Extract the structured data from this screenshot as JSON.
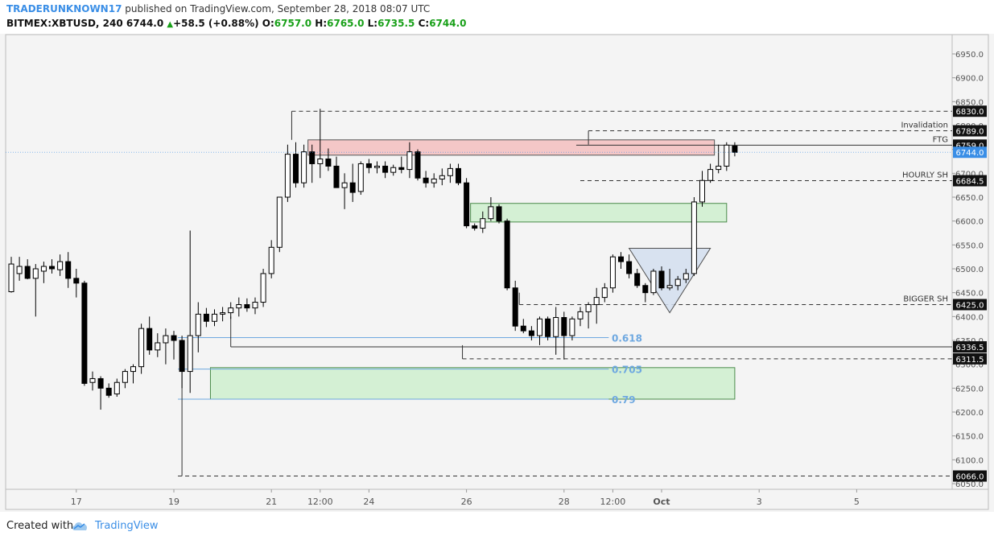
{
  "header": {
    "author": "TRADERUNKNOWN17",
    "published_text": "published on TradingView.com, September 28, 2018 08:07 UTC",
    "symbol": "BITMEX:XBTUSD, 240",
    "last_price": "6744.0",
    "change_arrow": "▲",
    "change": "+58.5 (+0.88%)",
    "o_label": "O:",
    "o_value": "6757.0",
    "h_label": "H:",
    "h_value": "6765.0",
    "l_label": "L:",
    "l_value": "6735.5",
    "c_label": "C:",
    "c_value": "6744.0"
  },
  "footer": {
    "created_with": "Created with",
    "brand": "TradingView",
    "logo_icon": "tradingview-cloud-icon"
  },
  "colors": {
    "background": "#f4f4f4",
    "panel": "#ffffff",
    "up_candle": "#ffffff",
    "down_candle": "#000000",
    "resistance_zone": "#f4c7c7",
    "support_zone": "#d4f0d4",
    "fib_text": "#6ea8e0",
    "current_price_tag": "#3a8ee6",
    "triangle_fill": "#d4dff0"
  },
  "chart_data": {
    "type": "candlestick",
    "symbol": "BITMEX:XBTUSD",
    "interval": "240",
    "ylim": [
      6030,
      6980
    ],
    "y_ticks": [
      6050.0,
      6100.0,
      6150.0,
      6200.0,
      6250.0,
      6300.0,
      6350.0,
      6400.0,
      6450.0,
      6500.0,
      6550.0,
      6600.0,
      6650.0,
      6700.0,
      6750.0,
      6800.0,
      6850.0,
      6900.0,
      6950.0
    ],
    "x_ticks": [
      "17",
      "19",
      "21",
      "12:00",
      "24",
      "26",
      "28",
      "12:00",
      "Oct",
      "3",
      "5"
    ],
    "x_tick_index": [
      8,
      20,
      32,
      38,
      44,
      56,
      68,
      74,
      80,
      92,
      104
    ],
    "ohlc": [
      [
        6452,
        6525,
        6450,
        6510
      ],
      [
        6490,
        6525,
        6475,
        6505
      ],
      [
        6505,
        6520,
        6478,
        6480
      ],
      [
        6480,
        6510,
        6400,
        6500
      ],
      [
        6495,
        6515,
        6470,
        6505
      ],
      [
        6505,
        6520,
        6490,
        6500
      ],
      [
        6498,
        6530,
        6485,
        6515
      ],
      [
        6515,
        6535,
        6460,
        6480
      ],
      [
        6480,
        6500,
        6440,
        6470
      ],
      [
        6470,
        6475,
        6255,
        6260
      ],
      [
        6262,
        6285,
        6245,
        6270
      ],
      [
        6270,
        6275,
        6205,
        6250
      ],
      [
        6250,
        6260,
        6230,
        6235
      ],
      [
        6238,
        6270,
        6232,
        6262
      ],
      [
        6262,
        6290,
        6250,
        6285
      ],
      [
        6285,
        6300,
        6260,
        6295
      ],
      [
        6295,
        6385,
        6280,
        6375
      ],
      [
        6375,
        6400,
        6320,
        6330
      ],
      [
        6330,
        6365,
        6315,
        6345
      ],
      [
        6345,
        6375,
        6300,
        6360
      ],
      [
        6360,
        6370,
        6310,
        6350
      ],
      [
        6350,
        6360,
        6250,
        6285
      ],
      [
        6285,
        6580,
        6240,
        6360
      ],
      [
        6360,
        6430,
        6325,
        6405
      ],
      [
        6405,
        6418,
        6378,
        6390
      ],
      [
        6390,
        6415,
        6380,
        6405
      ],
      [
        6405,
        6420,
        6390,
        6408
      ],
      [
        6408,
        6430,
        6395,
        6418
      ],
      [
        6418,
        6440,
        6400,
        6425
      ],
      [
        6425,
        6438,
        6410,
        6418
      ],
      [
        6418,
        6440,
        6405,
        6430
      ],
      [
        6430,
        6500,
        6420,
        6490
      ],
      [
        6490,
        6560,
        6480,
        6545
      ],
      [
        6545,
        6650,
        6535,
        6650
      ],
      [
        6650,
        6760,
        6640,
        6740
      ],
      [
        6740,
        6765,
        6670,
        6680
      ],
      [
        6680,
        6760,
        6670,
        6745
      ],
      [
        6745,
        6760,
        6680,
        6720
      ],
      [
        6720,
        6835,
        6690,
        6730
      ],
      [
        6730,
        6752,
        6705,
        6715
      ],
      [
        6715,
        6735,
        6670,
        6670
      ],
      [
        6670,
        6700,
        6625,
        6680
      ],
      [
        6680,
        6720,
        6640,
        6660
      ],
      [
        6662,
        6725,
        6655,
        6720
      ],
      [
        6720,
        6730,
        6700,
        6712
      ],
      [
        6712,
        6725,
        6700,
        6715
      ],
      [
        6715,
        6725,
        6690,
        6702
      ],
      [
        6702,
        6718,
        6695,
        6712
      ],
      [
        6712,
        6735,
        6700,
        6708
      ],
      [
        6708,
        6765,
        6690,
        6745
      ],
      [
        6745,
        6750,
        6685,
        6690
      ],
      [
        6690,
        6705,
        6670,
        6680
      ],
      [
        6680,
        6700,
        6670,
        6688
      ],
      [
        6688,
        6710,
        6675,
        6695
      ],
      [
        6695,
        6720,
        6680,
        6710
      ],
      [
        6710,
        6720,
        6675,
        6680
      ],
      [
        6680,
        6690,
        6585,
        6590
      ],
      [
        6590,
        6595,
        6580,
        6585
      ],
      [
        6585,
        6620,
        6575,
        6605
      ],
      [
        6605,
        6650,
        6600,
        6630
      ],
      [
        6630,
        6635,
        6595,
        6600
      ],
      [
        6600,
        6605,
        6455,
        6460
      ],
      [
        6460,
        6475,
        6370,
        6380
      ],
      [
        6380,
        6395,
        6365,
        6370
      ],
      [
        6370,
        6380,
        6350,
        6360
      ],
      [
        6360,
        6400,
        6340,
        6395
      ],
      [
        6395,
        6400,
        6350,
        6358
      ],
      [
        6358,
        6420,
        6320,
        6398
      ],
      [
        6398,
        6410,
        6310,
        6360
      ],
      [
        6360,
        6400,
        6350,
        6395
      ],
      [
        6395,
        6420,
        6380,
        6410
      ],
      [
        6410,
        6430,
        6375,
        6425
      ],
      [
        6425,
        6460,
        6385,
        6440
      ],
      [
        6440,
        6470,
        6430,
        6460
      ],
      [
        6460,
        6530,
        6450,
        6525
      ],
      [
        6525,
        6535,
        6500,
        6515
      ],
      [
        6515,
        6530,
        6480,
        6490
      ],
      [
        6490,
        6500,
        6460,
        6465
      ],
      [
        6465,
        6470,
        6430,
        6450
      ],
      [
        6450,
        6500,
        6445,
        6495
      ],
      [
        6495,
        6505,
        6455,
        6460
      ],
      [
        6460,
        6500,
        6455,
        6465
      ],
      [
        6465,
        6485,
        6455,
        6478
      ],
      [
        6478,
        6500,
        6470,
        6490
      ],
      [
        6490,
        6650,
        6485,
        6640
      ],
      [
        6640,
        6705,
        6630,
        6685
      ],
      [
        6685,
        6720,
        6680,
        6708
      ],
      [
        6708,
        6760,
        6700,
        6715
      ],
      [
        6715,
        6765,
        6705,
        6759
      ],
      [
        6757,
        6765,
        6735.5,
        6744
      ]
    ],
    "levels": [
      {
        "price": 6830.0,
        "tag": "6830.0",
        "style": "dashed"
      },
      {
        "price": 6789.0,
        "tag": "6789.0",
        "label": "Invalidation",
        "style": "dashed"
      },
      {
        "price": 6759.0,
        "tag": "6759.0",
        "label": "FTG",
        "style": "solid"
      },
      {
        "price": 6684.5,
        "tag": "6684.5",
        "label": "HOURLY SH",
        "style": "dashed"
      },
      {
        "price": 6425.0,
        "tag": "6425.0",
        "label": "BIGGER SH",
        "style": "dashed"
      },
      {
        "price": 6336.5,
        "tag": "6336.5",
        "style": "solid"
      },
      {
        "price": 6311.5,
        "tag": "6311.5",
        "style": "dashed"
      },
      {
        "price": 6066.0,
        "tag": "6066.0",
        "style": "dashed"
      }
    ],
    "current_price": {
      "price": 6744.0,
      "tag": "6744.0"
    },
    "fib_levels": [
      {
        "ratio": "0.618",
        "price": 6356
      },
      {
        "ratio": "0.705",
        "price": 6290
      },
      {
        "ratio": "0.79",
        "price": 6227
      }
    ],
    "zones": [
      {
        "type": "resistance",
        "top": 6770,
        "bottom": 6738,
        "from_index": 36.5,
        "to_index": 86.5
      },
      {
        "type": "support",
        "top": 6637,
        "bottom": 6598,
        "from_index": 56.5,
        "to_index": 88
      },
      {
        "type": "support",
        "top": 6293,
        "bottom": 6227,
        "from_index": 24.5,
        "to_index": 89
      }
    ],
    "triangle": {
      "p1": [
        76,
        6543
      ],
      "p2": [
        86,
        6543
      ],
      "p3": [
        81,
        6408
      ]
    },
    "grid": false
  }
}
